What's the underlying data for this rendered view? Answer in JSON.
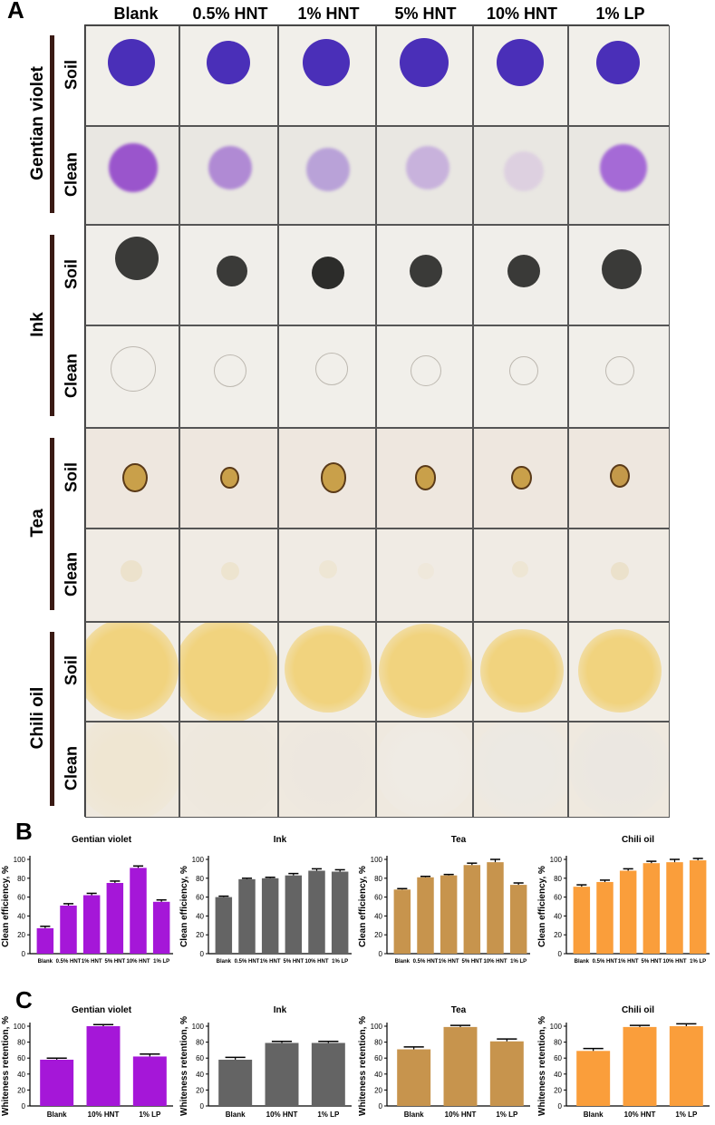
{
  "panels": {
    "a": "A",
    "b": "B",
    "c": "C"
  },
  "photo_grid": {
    "columns": [
      "Blank",
      "0.5% HNT",
      "1% HNT",
      "5% HNT",
      "10% HNT",
      "1% LP"
    ],
    "groups": [
      {
        "label": "Gentian violet",
        "rows": [
          {
            "label": "Soil",
            "bg": "#f1efea",
            "stains": [
              "#4a2fb8",
              "#4a2fb8",
              "#4a2fb8",
              "#4a2fb8",
              "#4a2fb8",
              "#4a2fb8"
            ]
          },
          {
            "label": "Clean",
            "bg": "#e9e7e2",
            "stains": [
              "#9a55cc",
              "#b08ad4",
              "#b9a2d8",
              "#c8b2dc",
              "#ddd0e0",
              "#a56ad6"
            ]
          }
        ]
      },
      {
        "label": "Ink",
        "rows": [
          {
            "label": "Soil",
            "bg": "#f0eeea",
            "stains": [
              "#3a3a38",
              "#3a3a38",
              "#2c2c2a",
              "#3a3a38",
              "#3a3a38",
              "#3a3a38"
            ]
          },
          {
            "label": "Clean",
            "bg": "#f1efea",
            "stains": [
              "#d8d4ce",
              "#e2dfda",
              "#dcd8d0",
              "#e5e2dd",
              "#e6e3de",
              "#e3e0db"
            ]
          }
        ]
      },
      {
        "label": "Tea",
        "rows": [
          {
            "label": "Soil",
            "bg": "#eee7df",
            "stains": [
              "#c9a04a",
              "#c9a04a",
              "#c9a04a",
              "#c9a04a",
              "#c9a04a",
              "#c4994a"
            ]
          },
          {
            "label": "Clean",
            "bg": "#f0ebe4",
            "stains": [
              "#ece2cc",
              "#ede4cf",
              "#eee6d4",
              "#efe8db",
              "#eee6d4",
              "#ebe1cb"
            ]
          }
        ]
      },
      {
        "label": "Chili oil",
        "rows": [
          {
            "label": "Soil",
            "bg": "#f1ede5",
            "stains": [
              "#f1d37e",
              "#f1d37e",
              "#f1d37e",
              "#f1d37e",
              "#f1d37e",
              "#f1d37e"
            ]
          },
          {
            "label": "Clean",
            "bg": "#efe9df",
            "stains": [
              "#efe6d2",
              "#eee8dd",
              "#ede7df",
              "#efebe4",
              "#ece9e3",
              "#ebe7e1"
            ]
          }
        ]
      }
    ]
  },
  "chart_data": [
    {
      "type": "bar",
      "panel": "B",
      "title": "Gentian violet",
      "ylabel": "Clean efficiency, %",
      "categories": [
        "Blank",
        "0.5% HNT",
        "1% HNT",
        "5% HNT",
        "10% HNT",
        "1% LP"
      ],
      "values": [
        27,
        51,
        62,
        75,
        91,
        55
      ],
      "errors": [
        2,
        2,
        2,
        2,
        2,
        2
      ],
      "ylim": [
        0,
        100
      ],
      "yticks": [
        0,
        20,
        40,
        60,
        80,
        100
      ],
      "color": "#a517d8"
    },
    {
      "type": "bar",
      "panel": "B",
      "title": "Ink",
      "ylabel": "Clean efficiency, %",
      "categories": [
        "Blank",
        "0.5% HNT",
        "1% HNT",
        "5% HNT",
        "10% HNT",
        "1% LP"
      ],
      "values": [
        60,
        79,
        80,
        83,
        88,
        87
      ],
      "errors": [
        1,
        1,
        1,
        2,
        2,
        2
      ],
      "ylim": [
        0,
        100
      ],
      "yticks": [
        0,
        20,
        40,
        60,
        80,
        100
      ],
      "color": "#646464"
    },
    {
      "type": "bar",
      "panel": "B",
      "title": "Tea",
      "ylabel": "Clean efficiency, %",
      "categories": [
        "Blank",
        "0.5% HNT",
        "1% HNT",
        "5% HNT",
        "10% HNT",
        "1% LP"
      ],
      "values": [
        68,
        81,
        83,
        94,
        97,
        73
      ],
      "errors": [
        1,
        1,
        1,
        2,
        3,
        2
      ],
      "ylim": [
        0,
        100
      ],
      "yticks": [
        0,
        20,
        40,
        60,
        80,
        100
      ],
      "color": "#c7944d"
    },
    {
      "type": "bar",
      "panel": "B",
      "title": "Chili oil",
      "ylabel": "Clean efficiency, %",
      "categories": [
        "Blank",
        "0.5% HNT",
        "1% HNT",
        "5% HNT",
        "10% HNT",
        "1% LP"
      ],
      "values": [
        71,
        76,
        88,
        96,
        97,
        99
      ],
      "errors": [
        2,
        2,
        2,
        2,
        3,
        2
      ],
      "ylim": [
        0,
        100
      ],
      "yticks": [
        0,
        20,
        40,
        60,
        80,
        100
      ],
      "color": "#fa9e3b"
    },
    {
      "type": "bar",
      "panel": "C",
      "title": "Gentian violet",
      "ylabel": "Whiteness retention, %",
      "categories": [
        "Blank",
        "10% HNT",
        "1% LP"
      ],
      "values": [
        58,
        100,
        62
      ],
      "errors": [
        2,
        2,
        3
      ],
      "ylim": [
        0,
        100
      ],
      "yticks": [
        0,
        20,
        40,
        60,
        80,
        100
      ],
      "color": "#a517d8"
    },
    {
      "type": "bar",
      "panel": "C",
      "title": "Ink",
      "ylabel": "Whiteness retention, %",
      "categories": [
        "Blank",
        "10% HNT",
        "1% LP"
      ],
      "values": [
        58,
        79,
        79
      ],
      "errors": [
        3,
        2,
        2
      ],
      "ylim": [
        0,
        100
      ],
      "yticks": [
        0,
        20,
        40,
        60,
        80,
        100
      ],
      "color": "#646464"
    },
    {
      "type": "bar",
      "panel": "C",
      "title": "Tea",
      "ylabel": "Whiteness retention, %",
      "categories": [
        "Blank",
        "10% HNT",
        "1% LP"
      ],
      "values": [
        71,
        99,
        81
      ],
      "errors": [
        3,
        2,
        3
      ],
      "ylim": [
        0,
        100
      ],
      "yticks": [
        0,
        20,
        40,
        60,
        80,
        100
      ],
      "color": "#c7944d"
    },
    {
      "type": "bar",
      "panel": "C",
      "title": "Chili oil",
      "ylabel": "Whiteness retention, %",
      "categories": [
        "Blank",
        "10% HNT",
        "1% LP"
      ],
      "values": [
        69,
        99,
        100
      ],
      "errors": [
        3,
        2,
        3
      ],
      "ylim": [
        0,
        100
      ],
      "yticks": [
        0,
        20,
        40,
        60,
        80,
        100
      ],
      "color": "#fa9e3b"
    }
  ]
}
